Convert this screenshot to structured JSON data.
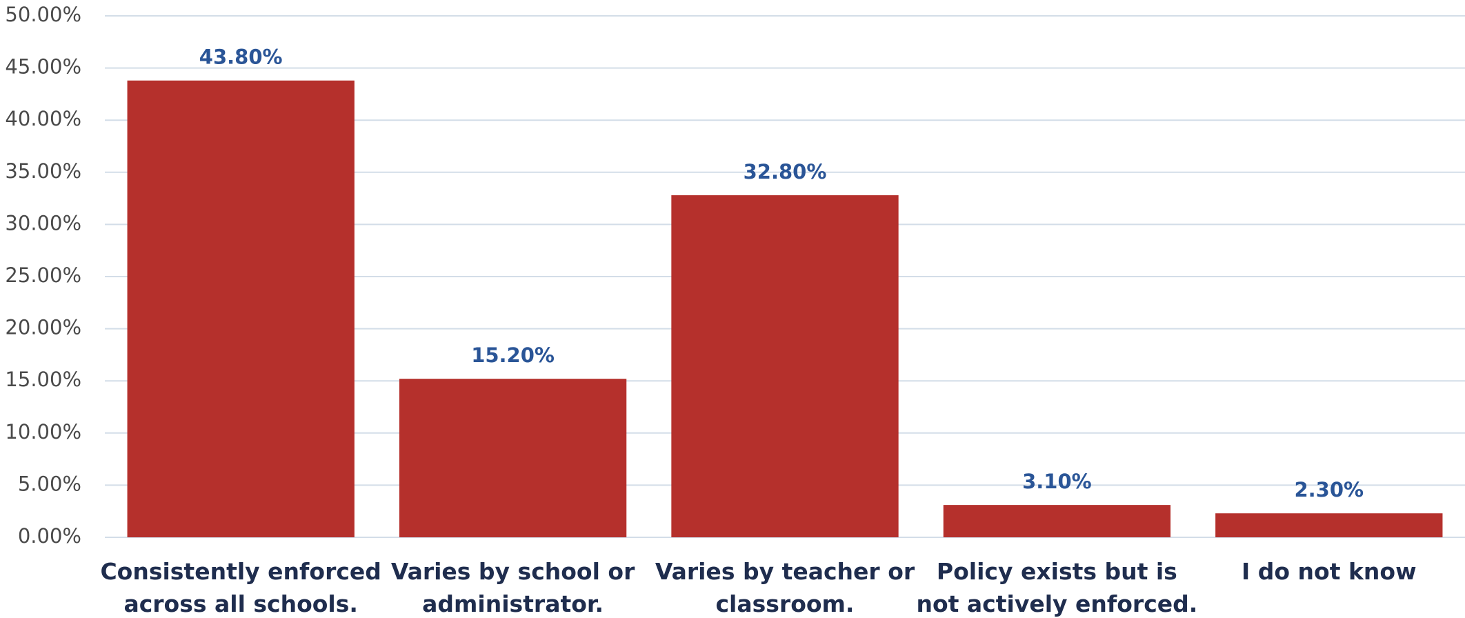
{
  "chart_data": {
    "type": "bar",
    "categories": [
      "Consistently enforced across all schools.",
      "Varies by school or administrator.",
      "Varies by teacher or classroom.",
      "Policy exists but is not actively enforced.",
      "I do not know"
    ],
    "values": [
      43.8,
      15.2,
      32.8,
      3.1,
      2.3
    ],
    "value_labels": [
      "43.80%",
      "15.20%",
      "32.80%",
      "3.10%",
      "2.30%"
    ],
    "color": "#b5302c",
    "ylim": [
      0,
      50
    ],
    "yticks": [
      {
        "value": 0,
        "label": "0.00%"
      },
      {
        "value": 5,
        "label": "5.00%"
      },
      {
        "value": 10,
        "label": "10.00%"
      },
      {
        "value": 15,
        "label": "15.00%"
      },
      {
        "value": 20,
        "label": "20.00%"
      },
      {
        "value": 25,
        "label": "25.00%"
      },
      {
        "value": 30,
        "label": "30.00%"
      },
      {
        "value": 35,
        "label": "35.00%"
      },
      {
        "value": 40,
        "label": "40.00%"
      },
      {
        "value": 45,
        "label": "45.00%"
      },
      {
        "value": 50,
        "label": "50.00%"
      }
    ],
    "grid": true
  }
}
